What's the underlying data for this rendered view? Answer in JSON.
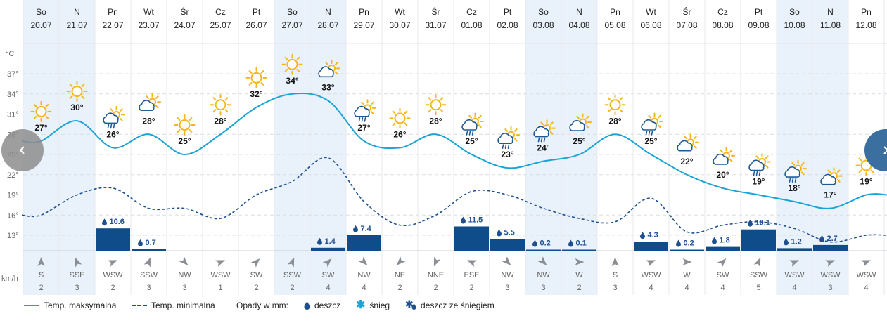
{
  "days": [
    {
      "dow": "So",
      "date": "20.07",
      "tmax": 27,
      "tmin": 16,
      "icon": "sun-icon",
      "precip": null,
      "wind_dir": "S",
      "wind_speed": "2",
      "weekend": true
    },
    {
      "dow": "N",
      "date": "21.07",
      "tmax": 30,
      "tmin": 19,
      "icon": "sun-icon",
      "precip": null,
      "wind_dir": "SSE",
      "wind_speed": "3",
      "weekend": true
    },
    {
      "dow": "Pn",
      "date": "22.07",
      "tmax": 26,
      "tmin": 20,
      "icon": "sun-rain-icon",
      "precip": "10.6",
      "precip_val": 10.6,
      "wind_dir": "WSW",
      "wind_speed": "2",
      "weekend": false
    },
    {
      "dow": "Wt",
      "date": "23.07",
      "tmax": 28,
      "tmin": 17,
      "icon": "sun-cloud-icon",
      "precip": "0.7",
      "precip_val": 0.7,
      "wind_dir": "SSW",
      "wind_speed": "3",
      "weekend": false
    },
    {
      "dow": "Śr",
      "date": "24.07",
      "tmax": 25,
      "tmin": 17,
      "icon": "sun-icon",
      "precip": null,
      "wind_dir": "NW",
      "wind_speed": "3",
      "weekend": false
    },
    {
      "dow": "Cz",
      "date": "25.07",
      "tmax": 28,
      "tmin": 15.5,
      "icon": "sun-icon",
      "precip": null,
      "wind_dir": "WSW",
      "wind_speed": "1",
      "weekend": false
    },
    {
      "dow": "Pt",
      "date": "26.07",
      "tmax": 32,
      "tmin": 19,
      "icon": "sun-icon",
      "precip": null,
      "wind_dir": "SW",
      "wind_speed": "2",
      "weekend": false
    },
    {
      "dow": "So",
      "date": "27.07",
      "tmax": 34,
      "tmin": 21,
      "icon": "sun-icon",
      "precip": null,
      "wind_dir": "SSW",
      "wind_speed": "2",
      "weekend": true
    },
    {
      "dow": "N",
      "date": "28.07",
      "tmax": 33,
      "tmin": 24.5,
      "icon": "sun-cloud-icon",
      "precip": "1.4",
      "precip_val": 1.4,
      "wind_dir": "SW",
      "wind_speed": "4",
      "weekend": true
    },
    {
      "dow": "Pn",
      "date": "29.07",
      "tmax": 27,
      "tmin": 18,
      "icon": "sun-rain-icon",
      "precip": "7.4",
      "precip_val": 7.4,
      "wind_dir": "NW",
      "wind_speed": "4",
      "weekend": false
    },
    {
      "dow": "Wt",
      "date": "30.07",
      "tmax": 26,
      "tmin": 14.5,
      "icon": "sun-icon",
      "precip": null,
      "wind_dir": "NE",
      "wind_speed": "2",
      "weekend": false
    },
    {
      "dow": "Śr",
      "date": "31.07",
      "tmax": 28,
      "tmin": 16,
      "icon": "sun-icon",
      "precip": null,
      "wind_dir": "NNE",
      "wind_speed": "2",
      "weekend": false
    },
    {
      "dow": "Cz",
      "date": "01.08",
      "tmax": 25,
      "tmin": 19.5,
      "icon": "sun-rain-icon",
      "precip": "11.5",
      "precip_val": 11.5,
      "wind_dir": "ESE",
      "wind_speed": "2",
      "weekend": false
    },
    {
      "dow": "Pt",
      "date": "02.08",
      "tmax": 23,
      "tmin": 19,
      "icon": "sun-rain-icon",
      "precip": "5.5",
      "precip_val": 5.5,
      "wind_dir": "NW",
      "wind_speed": "3",
      "weekend": false
    },
    {
      "dow": "So",
      "date": "03.08",
      "tmax": 24,
      "tmin": 17,
      "icon": "sun-rain-icon",
      "precip": "0.2",
      "precip_val": 0.2,
      "wind_dir": "NW",
      "wind_speed": "3",
      "weekend": true
    },
    {
      "dow": "N",
      "date": "04.08",
      "tmax": 25,
      "tmin": 15.5,
      "icon": "sun-cloud-icon",
      "precip": "0.1",
      "precip_val": 0.1,
      "wind_dir": "W",
      "wind_speed": "2",
      "weekend": true
    },
    {
      "dow": "Pn",
      "date": "05.08",
      "tmax": 28,
      "tmin": 15,
      "icon": "sun-icon",
      "precip": null,
      "wind_dir": "S",
      "wind_speed": "3",
      "weekend": false
    },
    {
      "dow": "Wt",
      "date": "06.08",
      "tmax": 25,
      "tmin": 18.5,
      "icon": "sun-rain-icon",
      "precip": "4.3",
      "precip_val": 4.3,
      "wind_dir": "WSW",
      "wind_speed": "4",
      "weekend": false
    },
    {
      "dow": "Śr",
      "date": "07.08",
      "tmax": 22,
      "tmin": 13.5,
      "icon": "sun-cloud-icon",
      "precip": "0.2",
      "precip_val": 0.2,
      "wind_dir": "W",
      "wind_speed": "4",
      "weekend": false
    },
    {
      "dow": "Cz",
      "date": "08.08",
      "tmax": 20,
      "tmin": 14.5,
      "icon": "sun-cloud-icon",
      "precip": "1.8",
      "precip_val": 1.8,
      "wind_dir": "SW",
      "wind_speed": "4",
      "weekend": false
    },
    {
      "dow": "Pt",
      "date": "09.08",
      "tmax": 19,
      "tmin": 15,
      "icon": "sun-rain-icon",
      "precip": "10.1",
      "precip_val": 10.1,
      "wind_dir": "SSW",
      "wind_speed": "5",
      "weekend": false
    },
    {
      "dow": "So",
      "date": "10.08",
      "tmax": 18,
      "tmin": 14,
      "icon": "sun-rain-icon",
      "precip": "1.2",
      "precip_val": 1.2,
      "wind_dir": "WSW",
      "wind_speed": "4",
      "weekend": true
    },
    {
      "dow": "N",
      "date": "11.08",
      "tmax": 17,
      "tmin": 12,
      "icon": "sun-cloud-icon",
      "precip": "2.7",
      "precip_val": 2.7,
      "wind_dir": "WSW",
      "wind_speed": "3",
      "weekend": true
    },
    {
      "dow": "Pn",
      "date": "12.08",
      "tmax": 19,
      "tmin": 13,
      "icon": "sun-icon",
      "precip": null,
      "wind_dir": "WSW",
      "wind_speed": "4",
      "weekend": false
    }
  ],
  "axis": {
    "unit_label": "°C",
    "ticks": [
      13,
      16,
      19,
      22,
      25,
      28,
      31,
      34,
      37
    ],
    "wind_unit": "km/h"
  },
  "legend": {
    "tmax": "Temp. maksymalna",
    "tmin": "Temp. minimalna",
    "precip_title": "Opady w mm:",
    "rain": "deszcz",
    "snow": "śnieg",
    "sleet": "deszcz ze śniegiem"
  },
  "colors": {
    "tmax": "#1aa4d6",
    "tmin": "#1e4f8f",
    "bar": "#0f4c8a",
    "weekend_bg": "#e9f2fb",
    "nav": "#3b6fa0",
    "sun": "#f6b619",
    "cloud": "#1f5a96"
  }
}
